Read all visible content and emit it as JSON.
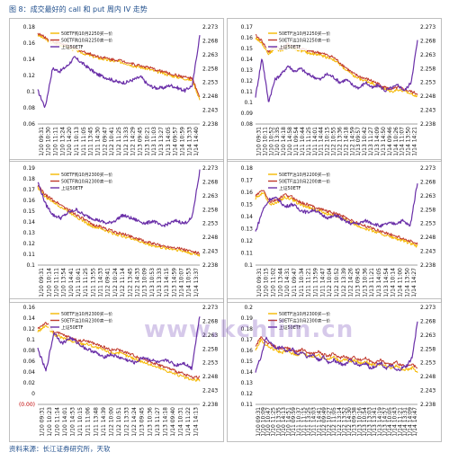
{
  "page": {
    "title": "图 8：成交最好的 call 和 put 周内 IV 走势",
    "source": "资料来源：长江证券研究所，天软",
    "watermark": "www.kchlim.cn"
  },
  "colors": {
    "series_a": "#f5b800",
    "series_b": "#c0392b",
    "underlying": "#6a2fa8",
    "frame": "#b0b0b0"
  },
  "chart_data": [
    {
      "type": "line",
      "y_left": {
        "lim": [
          0.06,
          0.18
        ],
        "ticks": [
          "0.06",
          "0.08",
          "0.1",
          "0.12",
          "0.14",
          "0.16",
          "0.18"
        ]
      },
      "y_right": {
        "lim": [
          2.238,
          2.273
        ],
        "ticks": [
          "2.238",
          "2.243",
          "2.248",
          "2.253",
          "2.258",
          "2.263",
          "2.268",
          "2.273"
        ]
      },
      "x_ticks": [
        "1/10 09:31",
        "1/10 10:30",
        "1/10 11:11",
        "1/10 13:24",
        "1/10 14:20",
        "1/11 10:13",
        "1/11 11:05",
        "1/11 13:45",
        "1/11 14:30",
        "1/12 09:47",
        "1/12 10:41",
        "1/12 11:25",
        "1/12 13:33",
        "1/12 14:29",
        "1/13 09:45",
        "1/13 10:21",
        "1/13 11:03",
        "1/13 13:27",
        "1/13 14:05",
        "1/14 09:57",
        "1/14 10:59",
        "1/14 13:33",
        "1/14 14:40"
      ],
      "legend": [
        "50ETF购10月2250买一价",
        "50ETF购10月2250卖一价",
        "上证50ETF"
      ],
      "series": [
        {
          "name": "50ETF购10月2250买一价",
          "axis": "left",
          "values": [
            0.17,
            0.165,
            0.16,
            0.158,
            0.155,
            0.152,
            0.148,
            0.145,
            0.142,
            0.14,
            0.138,
            0.137,
            0.135,
            0.132,
            0.13,
            0.128,
            0.125,
            0.123,
            0.12,
            0.118,
            0.116,
            0.114,
            0.09
          ]
        },
        {
          "name": "50ETF购10月2250卖一价",
          "axis": "left",
          "values": [
            0.172,
            0.167,
            0.162,
            0.16,
            0.157,
            0.154,
            0.15,
            0.147,
            0.144,
            0.142,
            0.14,
            0.139,
            0.137,
            0.134,
            0.132,
            0.13,
            0.127,
            0.125,
            0.122,
            0.12,
            0.118,
            0.116,
            0.092
          ]
        },
        {
          "name": "上证50ETF",
          "axis": "right",
          "values": [
            2.25,
            2.244,
            2.258,
            2.257,
            2.259,
            2.262,
            2.26,
            2.258,
            2.256,
            2.255,
            2.254,
            2.253,
            2.253,
            2.254,
            2.255,
            2.252,
            2.251,
            2.251,
            2.252,
            2.251,
            2.25,
            2.252,
            2.27
          ]
        }
      ]
    },
    {
      "type": "line",
      "y_left": {
        "lim": [
          0.08,
          0.17
        ],
        "ticks": [
          "0.08",
          "0.09",
          "0.1",
          "0.11",
          "0.12",
          "0.13",
          "0.14",
          "0.15",
          "0.16",
          "0.17"
        ]
      },
      "y_right": {
        "lim": [
          2.238,
          2.273
        ],
        "ticks": [
          "2.238",
          "2.243",
          "2.248",
          "2.253",
          "2.258",
          "2.263",
          "2.268",
          "2.273"
        ]
      },
      "x_ticks": [
        "1/10 09:31",
        "1/10 10:11",
        "1/10 10:52",
        "1/10 13:35",
        "1/10 14:18",
        "1/10 14:58",
        "1/11 09:54",
        "1/11 10:44",
        "1/11 11:25",
        "1/11 14:01",
        "1/11 14:44",
        "1/12 10:15",
        "1/12 10:55",
        "1/12 13:36",
        "1/12 14:18",
        "1/12 14:59",
        "1/13 09:57",
        "1/13 10:42",
        "1/13 11:27",
        "1/13 14:09",
        "1/13 14:50",
        "1/14 09:46",
        "1/14 10:26",
        "1/14 11:07",
        "1/14 13:50",
        "1/14 14:21"
      ],
      "legend": [
        "50ETF沽10月2250买一价",
        "50ETF沽10月2250卖一价",
        "上证50ETF"
      ],
      "series": [
        {
          "name": "50ETF沽10月2250买一价",
          "axis": "left",
          "values": [
            0.16,
            0.155,
            0.145,
            0.15,
            0.148,
            0.152,
            0.15,
            0.148,
            0.146,
            0.145,
            0.144,
            0.142,
            0.14,
            0.135,
            0.13,
            0.125,
            0.122,
            0.12,
            0.118,
            0.115,
            0.112,
            0.11,
            0.112,
            0.11,
            0.108,
            0.106
          ]
        },
        {
          "name": "50ETF沽10月2250卖一价",
          "axis": "left",
          "values": [
            0.162,
            0.157,
            0.147,
            0.152,
            0.15,
            0.154,
            0.152,
            0.15,
            0.148,
            0.147,
            0.146,
            0.144,
            0.142,
            0.137,
            0.132,
            0.127,
            0.124,
            0.122,
            0.12,
            0.117,
            0.114,
            0.112,
            0.114,
            0.112,
            0.11,
            0.108
          ]
        },
        {
          "name": "上证50ETF",
          "axis": "right",
          "values": [
            2.248,
            2.262,
            2.246,
            2.254,
            2.256,
            2.259,
            2.257,
            2.258,
            2.256,
            2.255,
            2.254,
            2.256,
            2.255,
            2.253,
            2.254,
            2.252,
            2.251,
            2.253,
            2.251,
            2.252,
            2.25,
            2.251,
            2.252,
            2.25,
            2.253,
            2.268
          ]
        }
      ]
    },
    {
      "type": "line",
      "y_left": {
        "lim": [
          0.1,
          0.2
        ],
        "ticks": [
          "0.1",
          "0.11",
          "0.12",
          "0.13",
          "0.14",
          "0.15",
          "0.16",
          "0.17",
          "0.18",
          "0.19"
        ]
      },
      "y_right": {
        "lim": [
          2.238,
          2.273
        ],
        "ticks": [
          "2.238",
          "2.243",
          "2.248",
          "2.253",
          "2.258",
          "2.263",
          "2.268",
          "2.273"
        ]
      },
      "x_ticks": [
        "1/10 09:31",
        "1/10 10:14",
        "1/10 11:11",
        "1/10 13:54",
        "1/10 14:41",
        "1/11 10:41",
        "1/11 11:25",
        "1/11 13:55",
        "1/11 14:33",
        "1/12 09:41",
        "1/12 10:24",
        "1/12 11:14",
        "1/12 13:45",
        "1/12 14:33",
        "1/13 10:09",
        "1/13 10:53",
        "1/13 13:33",
        "1/13 14:15",
        "1/13 14:59",
        "1/14 10:07",
        "1/14 10:53",
        "1/14 13:37"
      ],
      "legend": [
        "50ETF购10月2300买一价",
        "50ETF购10月2300卖一价",
        "上证50ETF"
      ],
      "series": [
        {
          "name": "50ETF购10月2300买一价",
          "axis": "left",
          "values": [
            0.18,
            0.17,
            0.165,
            0.16,
            0.155,
            0.15,
            0.145,
            0.14,
            0.138,
            0.135,
            0.132,
            0.13,
            0.128,
            0.125,
            0.122,
            0.12,
            0.118,
            0.117,
            0.116,
            0.114,
            0.112,
            0.11
          ]
        },
        {
          "name": "50ETF购10月2300卖一价",
          "axis": "left",
          "values": [
            0.182,
            0.172,
            0.167,
            0.162,
            0.157,
            0.152,
            0.147,
            0.142,
            0.14,
            0.137,
            0.134,
            0.132,
            0.13,
            0.127,
            0.124,
            0.122,
            0.12,
            0.119,
            0.118,
            0.116,
            0.114,
            0.112
          ]
        },
        {
          "name": "上证50ETF",
          "axis": "right",
          "values": [
            2.268,
            2.26,
            2.256,
            2.255,
            2.257,
            2.258,
            2.256,
            2.255,
            2.254,
            2.253,
            2.254,
            2.256,
            2.255,
            2.254,
            2.253,
            2.254,
            2.252,
            2.253,
            2.254,
            2.253,
            2.255,
            2.272
          ]
        }
      ]
    },
    {
      "type": "line",
      "y_left": {
        "lim": [
          0.1,
          0.18
        ],
        "ticks": [
          "0.1",
          "0.11",
          "0.12",
          "0.13",
          "0.14",
          "0.15",
          "0.16",
          "0.17",
          "0.18"
        ]
      },
      "y_right": {
        "lim": [
          2.238,
          2.273
        ],
        "ticks": [
          "2.238",
          "2.243",
          "2.248",
          "2.253",
          "2.258",
          "2.263",
          "2.268",
          "2.273"
        ]
      },
      "x_ticks": [
        "1/10 09:31",
        "1/10 10:15",
        "1/10 11:02",
        "1/10 13:44",
        "1/10 14:31",
        "1/11 09:47",
        "1/11 10:34",
        "1/11 11:21",
        "1/11 13:59",
        "1/11 14:47",
        "1/12 10:04",
        "1/12 10:52",
        "1/12 13:39",
        "1/12 14:26",
        "1/13 09:45",
        "1/13 10:36",
        "1/13 11:21",
        "1/13 14:05",
        "1/13 14:54",
        "1/14 10:14",
        "1/14 11:00",
        "1/14 13:50",
        "1/14 14:27"
      ],
      "legend": [
        "50ETF沽10月2200买一价",
        "50ETF沽10月2200卖一价",
        "上证50ETF"
      ],
      "series": [
        {
          "name": "50ETF沽10月2200买一价",
          "axis": "left",
          "values": [
            0.155,
            0.16,
            0.15,
            0.152,
            0.156,
            0.154,
            0.15,
            0.148,
            0.146,
            0.144,
            0.142,
            0.14,
            0.138,
            0.135,
            0.132,
            0.13,
            0.128,
            0.126,
            0.124,
            0.122,
            0.12,
            0.118,
            0.115
          ]
        },
        {
          "name": "50ETF沽10月2200卖一价",
          "axis": "left",
          "values": [
            0.157,
            0.162,
            0.152,
            0.154,
            0.158,
            0.156,
            0.152,
            0.15,
            0.148,
            0.146,
            0.144,
            0.142,
            0.14,
            0.137,
            0.134,
            0.132,
            0.13,
            0.128,
            0.126,
            0.124,
            0.122,
            0.12,
            0.117
          ]
        },
        {
          "name": "上证50ETF",
          "axis": "right",
          "values": [
            2.25,
            2.258,
            2.262,
            2.262,
            2.259,
            2.26,
            2.258,
            2.257,
            2.258,
            2.256,
            2.255,
            2.256,
            2.254,
            2.253,
            2.253,
            2.254,
            2.253,
            2.252,
            2.253,
            2.253,
            2.254,
            2.252,
            2.268
          ]
        }
      ]
    },
    {
      "type": "line",
      "y_left": {
        "lim": [
          0.0,
          0.16
        ],
        "ticks": [
          "(0.00)",
          "0",
          "0.02",
          "0.04",
          "0.06",
          "0.08",
          "0.1",
          "0.12",
          "0.14",
          "0.16"
        ]
      },
      "y_right": {
        "lim": [
          2.238,
          2.273
        ],
        "ticks": [
          "2.238",
          "2.243",
          "2.248",
          "2.253",
          "2.258",
          "2.263",
          "2.268",
          "2.273"
        ]
      },
      "x_ticks": [
        "1/10 09:31",
        "1/10 10:23",
        "1/10 11:14",
        "1/10 14:01",
        "1/10 14:53",
        "1/11 10:15",
        "1/11 11:06",
        "1/11 13:48",
        "1/11 14:39",
        "1/12 10:00",
        "1/12 10:51",
        "1/12 13:33",
        "1/12 14:24",
        "1/13 09:45",
        "1/13 10:36",
        "1/13 11:27",
        "1/13 14:18",
        "1/14 09:40",
        "1/14 10:31",
        "1/14 11:22",
        "1/14 14:13"
      ],
      "legend": [
        "50ETF沽10月2300买一价",
        "50ETF沽10月2300卖一价",
        "上证50ETF"
      ],
      "series": [
        {
          "name": "50ETF沽10月2300买一价",
          "axis": "left",
          "values": [
            0.12,
            0.13,
            0.115,
            0.11,
            0.105,
            0.1,
            0.1,
            0.095,
            0.09,
            0.085,
            0.085,
            0.08,
            0.075,
            0.07,
            0.065,
            0.06,
            0.055,
            0.05,
            0.045,
            0.04,
            0.04
          ]
        },
        {
          "name": "50ETF沽10月2300卖一价",
          "axis": "left",
          "values": [
            0.125,
            0.135,
            0.12,
            0.115,
            0.11,
            0.105,
            0.105,
            0.1,
            0.095,
            0.09,
            0.09,
            0.085,
            0.08,
            0.075,
            0.07,
            0.065,
            0.06,
            0.055,
            0.05,
            0.045,
            0.045
          ]
        },
        {
          "name": "上证50ETF",
          "axis": "right",
          "values": [
            2.258,
            2.25,
            2.264,
            2.26,
            2.262,
            2.26,
            2.258,
            2.257,
            2.255,
            2.256,
            2.255,
            2.254,
            2.253,
            2.255,
            2.254,
            2.253,
            2.254,
            2.252,
            2.253,
            2.251,
            2.27
          ]
        }
      ]
    },
    {
      "type": "line",
      "y_left": {
        "lim": [
          0.11,
          0.2
        ],
        "ticks": [
          "0.11",
          "0.12",
          "0.13",
          "0.14",
          "0.15",
          "0.16",
          "0.17",
          "0.18",
          "0.19",
          "0.2"
        ]
      },
      "y_right": {
        "lim": [
          2.238,
          2.273
        ],
        "ticks": [
          "2.238",
          "2.243",
          "2.248",
          "2.253",
          "2.258",
          "2.263",
          "2.268",
          "2.273"
        ]
      },
      "x_ticks": [
        "1/10 09:31",
        "1/10 10:09",
        "1/10 10:47",
        "1/10 11:25",
        "1/10 13:35",
        "1/10 14:13",
        "1/10 14:51",
        "1/11 09:59",
        "1/11 10:37",
        "1/11 11:15",
        "1/11 13:25",
        "1/11 14:03",
        "1/11 14:41",
        "1/12 09:49",
        "1/12 10:27",
        "1/12 11:05",
        "1/12 13:14",
        "1/12 13:52",
        "1/12 14:30",
        "1/13 09:38",
        "1/13 10:16",
        "1/13 10:54",
        "1/13 13:03",
        "1/13 13:41",
        "1/13 14:19",
        "1/13 14:57",
        "1/14 10:05",
        "1/14 10:43",
        "1/14 11:21",
        "1/14 13:31",
        "1/14 14:09",
        "1/14 14:47"
      ],
      "legend": [
        "50ETF沽10月2300买一价",
        "50ETF沽10月2300卖一价",
        "上证50ETF"
      ],
      "series": [
        {
          "name": "50ETF沽10月2300买一价",
          "axis": "left",
          "values": [
            0.16,
            0.17,
            0.165,
            0.162,
            0.16,
            0.158,
            0.16,
            0.157,
            0.156,
            0.158,
            0.155,
            0.154,
            0.156,
            0.153,
            0.152,
            0.154,
            0.15,
            0.152,
            0.149,
            0.151,
            0.148,
            0.15,
            0.147,
            0.146,
            0.148,
            0.145,
            0.144,
            0.146,
            0.143,
            0.142,
            0.144,
            0.14
          ]
        },
        {
          "name": "50ETF沽10月2300卖一价",
          "axis": "left",
          "values": [
            0.163,
            0.173,
            0.168,
            0.165,
            0.163,
            0.161,
            0.163,
            0.16,
            0.159,
            0.161,
            0.158,
            0.157,
            0.159,
            0.156,
            0.155,
            0.157,
            0.153,
            0.155,
            0.152,
            0.154,
            0.151,
            0.153,
            0.15,
            0.149,
            0.151,
            0.148,
            0.147,
            0.149,
            0.146,
            0.145,
            0.147,
            0.143
          ]
        },
        {
          "name": "上证50ETF",
          "axis": "right",
          "values": [
            2.25,
            2.255,
            2.262,
            2.26,
            2.258,
            2.259,
            2.257,
            2.258,
            2.256,
            2.257,
            2.255,
            2.256,
            2.254,
            2.255,
            2.253,
            2.254,
            2.253,
            2.252,
            2.254,
            2.253,
            2.252,
            2.253,
            2.251,
            2.252,
            2.253,
            2.251,
            2.252,
            2.25,
            2.251,
            2.252,
            2.255,
            2.268
          ]
        }
      ]
    }
  ]
}
